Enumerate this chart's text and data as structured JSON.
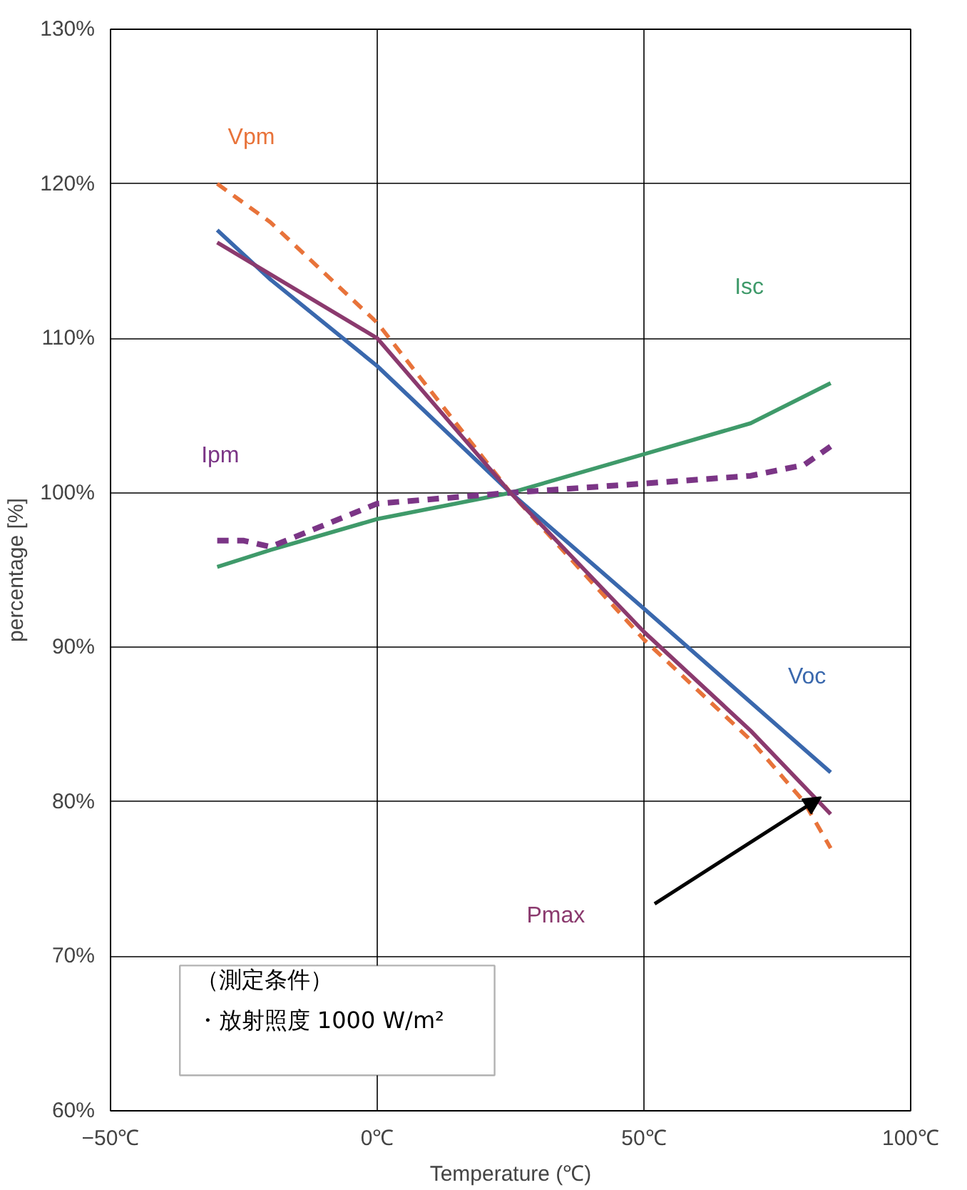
{
  "chart_data": {
    "type": "line",
    "xlabel": "Temperature (℃)",
    "ylabel": "percentage [%]",
    "xlim": [
      -50,
      100
    ],
    "xticks": [
      {
        "value": -50,
        "label": "−50℃"
      },
      {
        "value": 0,
        "label": "0℃"
      },
      {
        "value": 50,
        "label": "50℃"
      },
      {
        "value": 100,
        "label": "100℃"
      }
    ],
    "ylim": [
      60,
      130
    ],
    "yticks": [
      {
        "value": 60,
        "label": "60%"
      },
      {
        "value": 70,
        "label": "70%"
      },
      {
        "value": 80,
        "label": "80%"
      },
      {
        "value": 90,
        "label": "90%"
      },
      {
        "value": 100,
        "label": "100%"
      },
      {
        "value": 110,
        "label": "110%"
      },
      {
        "value": 120,
        "label": "120%"
      },
      {
        "value": 130,
        "label": "130%"
      }
    ],
    "grid": true,
    "marker": "none",
    "series": [
      {
        "name": "Vpm",
        "color": "#e8733a",
        "line_style": "dashed",
        "x": [
          -30,
          -20,
          0,
          25,
          50,
          70,
          80,
          85
        ],
        "values": [
          120,
          117.5,
          111,
          100,
          90.5,
          84,
          80,
          77
        ]
      },
      {
        "name": "Isc",
        "color": "#3f9a6a",
        "line_style": "solid",
        "x": [
          -30,
          -20,
          0,
          25,
          50,
          70,
          85
        ],
        "values": [
          95.2,
          96.3,
          98.3,
          100,
          102.5,
          104.5,
          107.1
        ]
      },
      {
        "name": "Ipm",
        "color": "#7b3586",
        "line_style": "dashed",
        "x": [
          -30,
          -25,
          -20,
          0,
          25,
          50,
          70,
          80,
          85
        ],
        "values": [
          96.9,
          96.9,
          96.5,
          99.3,
          100,
          100.6,
          101.1,
          101.8,
          103
        ]
      },
      {
        "name": "Voc",
        "color": "#3a68ad",
        "line_style": "solid",
        "x": [
          -30,
          -20,
          0,
          25,
          50,
          85
        ],
        "values": [
          117,
          113.8,
          108.2,
          100,
          92.5,
          81.9
        ]
      },
      {
        "name": "Pmax",
        "color": "#8b3a6e",
        "line_style": "solid",
        "x": [
          -30,
          0,
          25,
          50,
          70,
          85
        ],
        "values": [
          116.2,
          110,
          100,
          91,
          84.6,
          79.2
        ]
      }
    ],
    "annotations": [
      "（測定条件）",
      "・放射照度  1000 W/m²"
    ]
  }
}
